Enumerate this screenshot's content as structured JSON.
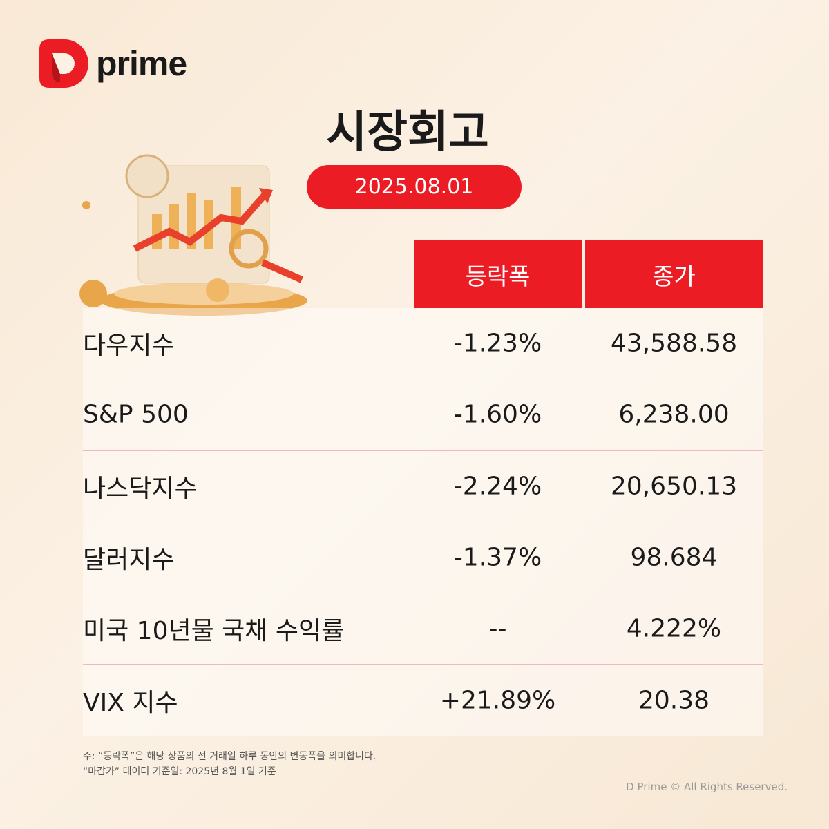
{
  "brand": {
    "name": "prime",
    "colors": {
      "accent": "#ec1c24",
      "text": "#1a1a1a"
    }
  },
  "title": "시장회고",
  "date": "2025.08.01",
  "table": {
    "headers": [
      "등락폭",
      "종가"
    ],
    "rows": [
      {
        "name": "다우지수",
        "change": "-1.23%",
        "close": "43,588.58"
      },
      {
        "name": "S&P 500",
        "change": "-1.60%",
        "close": "6,238.00"
      },
      {
        "name": "나스닥지수",
        "change": "-2.24%",
        "close": "20,650.13"
      },
      {
        "name": "달러지수",
        "change": "-1.37%",
        "close": "98.684"
      },
      {
        "name": "미국 10년물 국채 수익률",
        "change": "--",
        "close": "4.222%"
      },
      {
        "name": "VIX 지수",
        "change": "+21.89%",
        "close": "20.38"
      }
    ]
  },
  "notes": [
    "주: “등락폭”은 해당 상품의 전 거래일 하루 동안의 변동폭을 의미합니다.",
    "“마감가” 데이터 기준일: 2025년 8월 1일 기준"
  ],
  "copyright": "D Prime © All Rights Reserved."
}
